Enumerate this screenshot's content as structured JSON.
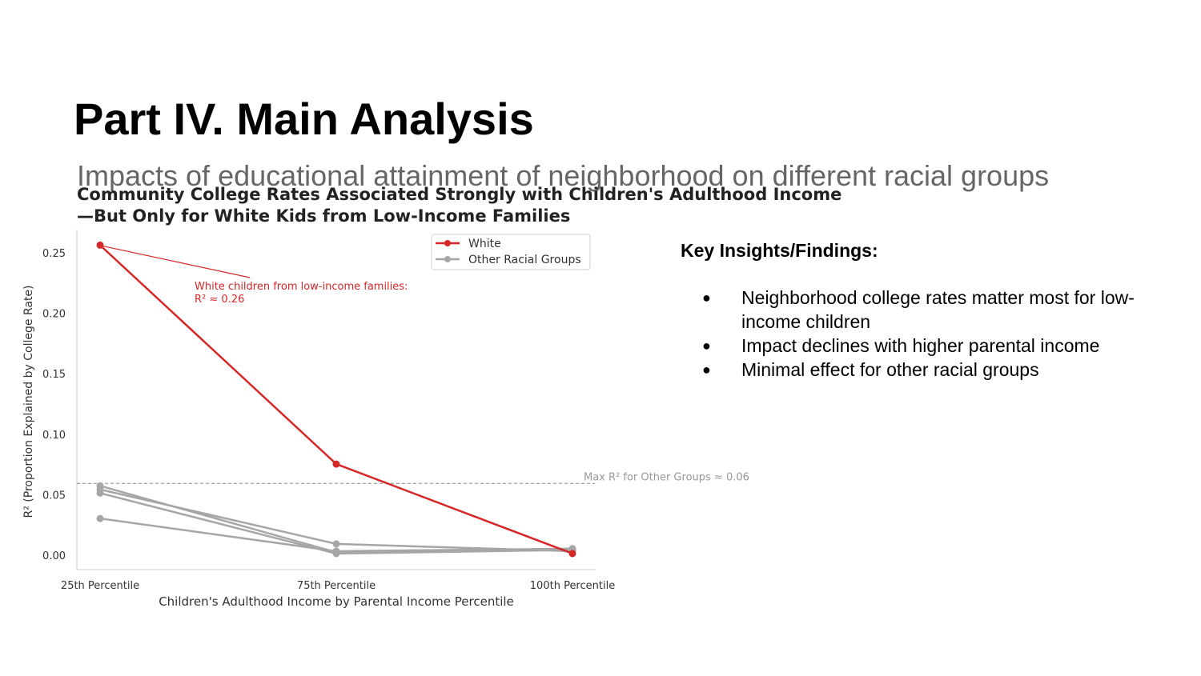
{
  "slide": {
    "title": "Part IV. Main Analysis",
    "subtitle": "Impacts of educational attainment of neighborhood on different racial groups"
  },
  "insights": {
    "heading": "Key Insights/Findings:",
    "items": [
      "Neighborhood college rates matter most for low-income children",
      "Impact declines with higher parental income",
      "Minimal effect for other racial groups"
    ]
  },
  "colors": {
    "white_series": "#d62728",
    "other_series": "#a6a6a6",
    "reference_line": "#888888"
  },
  "chart_data": {
    "type": "line",
    "title_lines": [
      "Community College Rates Associated Strongly with Children's Adulthood Income",
      "—But Only for White Kids from Low-Income Families"
    ],
    "xlabel": "Children's Adulthood Income by Parental Income Percentile",
    "ylabel": "R² (Proportion Explained by College Rate)",
    "categories": [
      "25th Percentile",
      "75th Percentile",
      "100th Percentile"
    ],
    "ylim": [
      0,
      0.27
    ],
    "yticks": [
      "0.00",
      "0.05",
      "0.10",
      "0.15",
      "0.20",
      "0.25"
    ],
    "legend_position": "top-right",
    "legend": [
      "White",
      "Other Racial Groups"
    ],
    "series": [
      {
        "group": "white",
        "values": [
          0.257,
          0.076,
          0.002
        ]
      },
      {
        "group": "other",
        "values": [
          0.058,
          0.003,
          0.006
        ]
      },
      {
        "group": "other",
        "values": [
          0.055,
          0.01,
          0.004
        ]
      },
      {
        "group": "other",
        "values": [
          0.052,
          0.002,
          0.005
        ]
      },
      {
        "group": "other",
        "values": [
          0.031,
          0.004,
          0.006
        ]
      }
    ],
    "reference_line": {
      "value": 0.06,
      "label": "Max R² for Other Groups ≈ 0.06"
    },
    "annotation": {
      "text_lines": [
        "White children from low-income families:",
        "R² ≈ 0.26"
      ],
      "target_category": 0,
      "target_value": 0.257
    }
  }
}
